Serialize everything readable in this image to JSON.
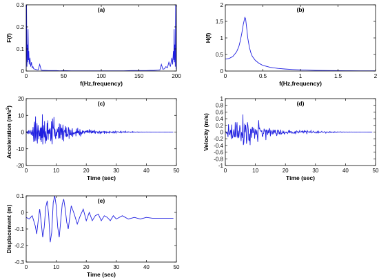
{
  "colors": {
    "series": "#1f1fe0",
    "axis": "#000000",
    "background": "#ffffff"
  },
  "chart_data": [
    {
      "id": "a",
      "type": "line",
      "title": "(a)",
      "xlabel": "f(Hz,frequency)",
      "ylabel": "F(f)",
      "xlim": [
        0,
        200
      ],
      "ylim": [
        0,
        0.3
      ],
      "xticks": [
        0,
        50,
        100,
        150,
        200
      ],
      "xtick_labels": [
        "0",
        "50",
        "100",
        "150",
        "200"
      ],
      "yticks": [
        0,
        0.1,
        0.2,
        0.3
      ],
      "ytick_labels": [
        "0",
        "0.1",
        "0.2",
        "0.3"
      ],
      "grid": false,
      "series": [
        {
          "values_description_none": true,
          "x": [
            0,
            0.5,
            1,
            1.5,
            2,
            2.5,
            3,
            3.5,
            4,
            5,
            6,
            7,
            8,
            9,
            10,
            12,
            14,
            16,
            18,
            20,
            22,
            25,
            30,
            35,
            40,
            45,
            50,
            60,
            70,
            80,
            90,
            100,
            110,
            120,
            130,
            140,
            150,
            155,
            160,
            165,
            170,
            175,
            178,
            180,
            182,
            184,
            186,
            188,
            190,
            192,
            194,
            195,
            196,
            196.5,
            197,
            197.5,
            198,
            198.5,
            199,
            199.5,
            200
          ],
          "y": [
            0.01,
            0.3,
            0.02,
            0.12,
            0.04,
            0.19,
            0.05,
            0.09,
            0.03,
            0.06,
            0.02,
            0.04,
            0.015,
            0.02,
            0.01,
            0.008,
            0.006,
            0.005,
            0.03,
            0.004,
            0.003,
            0.003,
            0.002,
            0.002,
            0.002,
            0.001,
            0.002,
            0.001,
            0.001,
            0.001,
            0.001,
            0.001,
            0.001,
            0.001,
            0.001,
            0.002,
            0.002,
            0.002,
            0.002,
            0.003,
            0.003,
            0.004,
            0.005,
            0.03,
            0.008,
            0.01,
            0.02,
            0.015,
            0.04,
            0.02,
            0.06,
            0.03,
            0.09,
            0.05,
            0.19,
            0.04,
            0.12,
            0.02,
            0.3,
            0.01,
            0.01
          ]
        }
      ]
    },
    {
      "id": "b",
      "type": "line",
      "title": "(b)",
      "xlabel": "f(Hz,frequency)",
      "ylabel": "H(f)",
      "xlim": [
        0,
        2
      ],
      "ylim": [
        0,
        2
      ],
      "xticks": [
        0,
        0.5,
        1,
        1.5,
        2
      ],
      "xtick_labels": [
        "0",
        "0.5",
        "1",
        "1.5",
        "2"
      ],
      "yticks": [
        0,
        0.5,
        1,
        1.5,
        2
      ],
      "ytick_labels": [
        "0",
        "0.5",
        "1",
        "1.5",
        "2"
      ],
      "grid": false,
      "series": [
        {
          "x": [
            0,
            0.05,
            0.1,
            0.15,
            0.18,
            0.2,
            0.22,
            0.24,
            0.26,
            0.27,
            0.28,
            0.3,
            0.32,
            0.34,
            0.36,
            0.4,
            0.45,
            0.5,
            0.6,
            0.7,
            0.8,
            0.9,
            1.0,
            1.2,
            1.4,
            1.6,
            1.8,
            2.0
          ],
          "y": [
            0.36,
            0.38,
            0.44,
            0.58,
            0.74,
            0.92,
            1.15,
            1.42,
            1.62,
            1.58,
            1.38,
            0.98,
            0.72,
            0.55,
            0.44,
            0.32,
            0.23,
            0.17,
            0.11,
            0.08,
            0.06,
            0.045,
            0.035,
            0.02,
            0.014,
            0.01,
            0.007,
            0.005
          ]
        }
      ]
    },
    {
      "id": "c",
      "type": "line",
      "title": "(c)",
      "xlabel": "Time (sec)",
      "ylabel": "Acceleration (m/s",
      "ylabel_sup": "2",
      "ylabel_tail": ")",
      "xlim": [
        0,
        50
      ],
      "ylim": [
        -20,
        20
      ],
      "xticks": [
        0,
        10,
        20,
        30,
        40,
        50
      ],
      "xtick_labels": [
        "0",
        "10",
        "20",
        "30",
        "40",
        "50"
      ],
      "yticks": [
        -20,
        -10,
        0,
        10,
        20
      ],
      "ytick_labels": [
        "-20",
        "-10",
        "0",
        "10",
        "20"
      ],
      "grid": false,
      "series": [
        {
          "envelope": [
            [
              0,
              0.5
            ],
            [
              1.5,
              3
            ],
            [
              3,
              8
            ],
            [
              4.5,
              10.5
            ],
            [
              7,
              10
            ],
            [
              9,
              9
            ],
            [
              11,
              7
            ],
            [
              13,
              5
            ],
            [
              16,
              3
            ],
            [
              19,
              2
            ],
            [
              22,
              1.5
            ],
            [
              26,
              1
            ],
            [
              30,
              0.7
            ],
            [
              34,
              0.4
            ],
            [
              38,
              0.15
            ],
            [
              42,
              0.05
            ],
            [
              49,
              0.02
            ]
          ],
          "t_end": 49,
          "dt": 0.12,
          "freqs": [
            2.3,
            3.9,
            5.7
          ],
          "offset": 0
        }
      ]
    },
    {
      "id": "d",
      "type": "line",
      "title": "(d)",
      "xlabel": "Time (sec)",
      "ylabel": "Velocity (m/s)",
      "xlim": [
        0,
        50
      ],
      "ylim": [
        -1,
        1
      ],
      "xticks": [
        0,
        10,
        20,
        30,
        40,
        50
      ],
      "xtick_labels": [
        "0",
        "10",
        "20",
        "30",
        "40",
        "50"
      ],
      "yticks": [
        -1,
        -0.8,
        -0.6,
        -0.4,
        -0.2,
        0,
        0.2,
        0.4,
        0.6,
        0.8,
        1
      ],
      "ytick_labels": [
        "-1",
        "-0.8",
        "-0.6",
        "-0.4",
        "-0.2",
        "0",
        "0.2",
        "0.4",
        "0.6",
        "0.8",
        "1"
      ],
      "grid": false,
      "series": [
        {
          "envelope": [
            [
              0,
              0.05
            ],
            [
              2,
              0.35
            ],
            [
              4,
              0.65
            ],
            [
              6,
              0.6
            ],
            [
              8,
              0.55
            ],
            [
              10,
              0.45
            ],
            [
              12,
              0.25
            ],
            [
              14,
              0.2
            ],
            [
              16,
              0.12
            ],
            [
              20,
              0.08
            ],
            [
              25,
              0.06
            ],
            [
              30,
              0.04
            ],
            [
              35,
              0.025
            ],
            [
              38,
              0.01
            ],
            [
              42,
              0.004
            ],
            [
              49,
              0.002
            ]
          ],
          "t_end": 49,
          "dt": 0.15,
          "freqs": [
            1.1,
            1.9,
            2.7
          ],
          "offset": 0
        }
      ]
    },
    {
      "id": "e",
      "type": "line",
      "title": "(e)",
      "xlabel": "Time (sec)",
      "ylabel": "Displacement (m)",
      "xlim": [
        0,
        50
      ],
      "ylim": [
        -0.3,
        0.1
      ],
      "xticks": [
        0,
        10,
        20,
        30,
        40,
        50
      ],
      "xtick_labels": [
        "0",
        "10",
        "20",
        "30",
        "40",
        "50"
      ],
      "yticks": [
        -0.3,
        -0.2,
        -0.1,
        0,
        0.1
      ],
      "ytick_labels": [
        "-0.3",
        "-0.2",
        "-0.1",
        "0",
        "0.1"
      ],
      "grid": false,
      "series": [
        {
          "x": [
            0,
            1,
            2,
            3,
            3.5,
            4,
            4.5,
            5,
            5.5,
            6,
            6.5,
            7,
            7.5,
            8,
            8.5,
            9,
            9.5,
            10,
            10.5,
            11,
            11.5,
            12,
            12.5,
            13,
            13.5,
            14,
            14.5,
            15,
            16,
            17,
            18,
            19,
            20,
            21,
            22,
            23,
            24,
            25,
            26,
            27,
            28,
            29,
            30,
            32,
            34,
            36,
            38,
            40,
            42,
            44,
            46,
            48,
            49
          ],
          "y": [
            -0.03,
            -0.04,
            -0.02,
            -0.08,
            -0.13,
            -0.05,
            0.02,
            -0.06,
            -0.15,
            -0.09,
            0.03,
            0.07,
            -0.02,
            -0.18,
            -0.12,
            0.06,
            0.1,
            0.04,
            -0.09,
            -0.15,
            -0.05,
            0.05,
            0.08,
            0.02,
            -0.06,
            -0.1,
            -0.03,
            0.04,
            -0.01,
            -0.07,
            -0.02,
            0.02,
            -0.05,
            0.0,
            -0.05,
            -0.02,
            -0.01,
            -0.05,
            -0.02,
            -0.03,
            -0.05,
            -0.02,
            -0.04,
            -0.02,
            -0.04,
            -0.03,
            -0.04,
            -0.03,
            -0.035,
            -0.035,
            -0.035,
            -0.035,
            -0.035
          ]
        }
      ]
    }
  ]
}
